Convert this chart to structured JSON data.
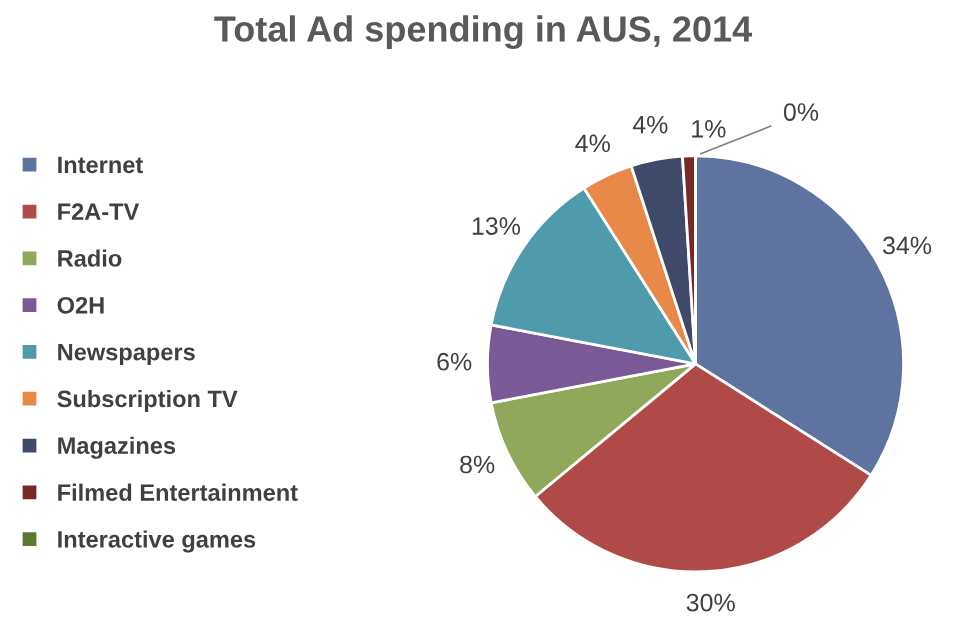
{
  "chart_data": {
    "type": "pie",
    "title": "Total Ad spending in AUS, 2014",
    "categories": [
      "Internet",
      "F2A-TV",
      "Radio",
      "O2H",
      "Newspapers",
      "Subscription TV",
      "Magazines",
      "Filmed Entertainment",
      "Interactive games"
    ],
    "values": [
      34,
      30,
      8,
      6,
      13,
      4,
      4,
      1,
      0
    ],
    "colors": [
      "#5f73a0",
      "#b04a48",
      "#8fa85a",
      "#7a5a96",
      "#4f9aab",
      "#e8894a",
      "#3f4a6a",
      "#7a2a26",
      "#5a7a30"
    ],
    "value_labels": [
      "34%",
      "30%",
      "8%",
      "6%",
      "13%",
      "4%",
      "4%",
      "1%",
      "0%"
    ],
    "legend": "left"
  }
}
